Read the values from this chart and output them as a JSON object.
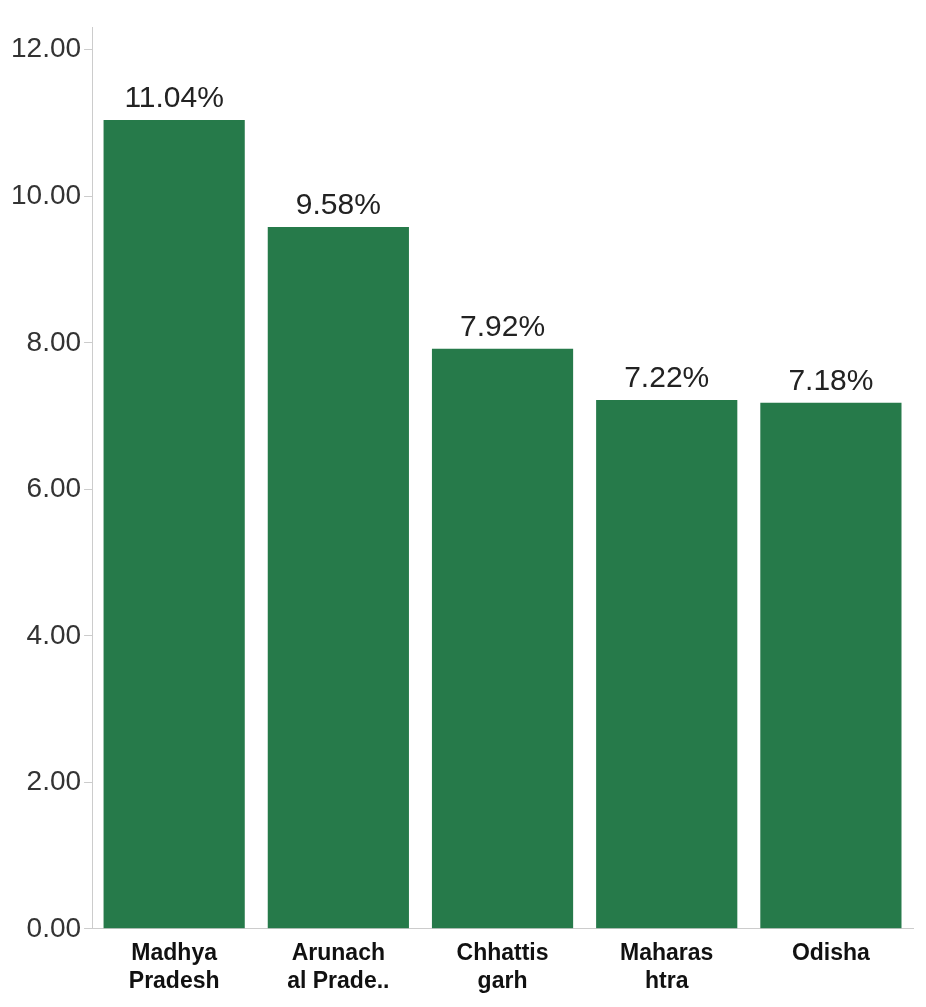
{
  "chart_data": {
    "type": "bar",
    "categories": [
      "Madhya\nPradesh",
      "Arunach\nal Prade..",
      "Chhattis\ngarh",
      "Maharas\nhtra",
      "Odisha"
    ],
    "values": [
      11.04,
      9.58,
      7.92,
      7.22,
      7.18
    ],
    "value_labels": [
      "11.04%",
      "9.58%",
      "7.92%",
      "7.22%",
      "7.18%"
    ],
    "color": "#267a4a",
    "ylim": [
      0,
      12.3
    ],
    "yticks": [
      {
        "value": 0,
        "label": "0.00"
      },
      {
        "value": 2,
        "label": "2.00"
      },
      {
        "value": 4,
        "label": "4.00"
      },
      {
        "value": 6,
        "label": "6.00"
      },
      {
        "value": 8,
        "label": "8.00"
      },
      {
        "value": 10,
        "label": "10.00"
      },
      {
        "value": 12,
        "label": "12.00"
      }
    ],
    "grid": false,
    "legend": false
  }
}
